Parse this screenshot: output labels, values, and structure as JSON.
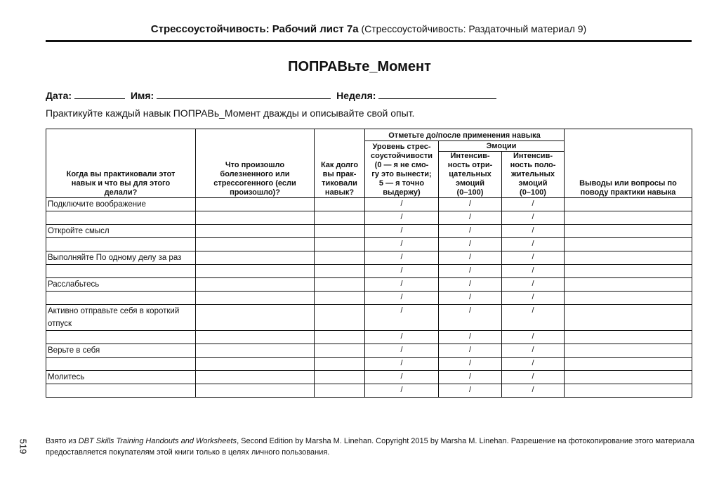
{
  "header": {
    "title": "Стрессоустойчивость: Рабочий лист 7а",
    "subtitle": "(Стрессоустойчивость: Раздаточный материал 9)"
  },
  "title": "ПОПРАВьте_Момент",
  "fields": [
    "Дата:",
    "Имя:",
    "Неделя:"
  ],
  "instruction": "Практикуйте каждый навык ПОПРАВь_Момент дважды и описывайте свой опыт.",
  "table": {
    "columns": [
      [
        "Когда вы практиковали этот",
        "навык и что вы для этого",
        "делали?"
      ],
      [
        "Что произошло",
        "болезненного или",
        "стрессогенного (если",
        "произошло)?"
      ],
      [
        "Как долго",
        "вы прак-",
        "тиковали",
        "навык?"
      ],
      [
        "Уровень стрес-",
        "соустойчивости",
        "(0 — я не смо-",
        "гу это вынести;",
        "5 — я точно",
        "выдержу)"
      ],
      [
        "Интенсив-",
        "ность отри-",
        "цательных",
        "эмоций",
        "(0–100)"
      ],
      [
        "Интенсив-",
        "ность поло-",
        "жительных",
        "эмоций",
        "(0–100)"
      ],
      [
        "Выводы или вопросы по",
        "поводу практики навыка"
      ]
    ],
    "group": "Отметьте до/после применения навыка",
    "emotions": "Эмоции",
    "separator": "/",
    "skills": [
      "Подключите воображение",
      "Откройте смысл",
      "Выполняйте По одному делу за раз",
      "Расслабьтесь",
      "Активно отправьте себя в короткий отпуск",
      "Верьте в себя",
      "Молитесь"
    ]
  },
  "footer": {
    "page": "519",
    "source_prefix": "Взято из ",
    "source_book": "DBT Skills Training Handouts and Worksheets",
    "source_rest": ", Second Edition by Marsha M. Linehan. Copyright 2015 by Marsha M. Linehan. Разрешение на фотокопирование этого материала предоставляется покупателям этой книги только в целях личного пользования."
  }
}
